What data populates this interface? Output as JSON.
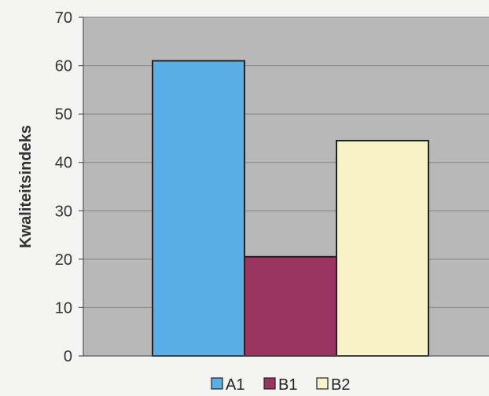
{
  "chart_data": {
    "type": "bar",
    "title": "",
    "xlabel": "",
    "ylabel": "Kwaliteitsindeks",
    "ylim": [
      0,
      70
    ],
    "yticks": [
      0,
      10,
      20,
      30,
      40,
      50,
      60,
      70
    ],
    "grid": true,
    "legend_position": "bottom",
    "series": [
      {
        "name": "A1",
        "value": 61,
        "color": "#5aaee8"
      },
      {
        "name": "B1",
        "value": 20.5,
        "color": "#9a3460"
      },
      {
        "name": "B2",
        "value": 44.5,
        "color": "#f8f2c8"
      }
    ],
    "colors": {
      "plot_background": "#b8b8b8",
      "gridline": "#8c8c8c",
      "bar_outline": "#222222"
    }
  }
}
